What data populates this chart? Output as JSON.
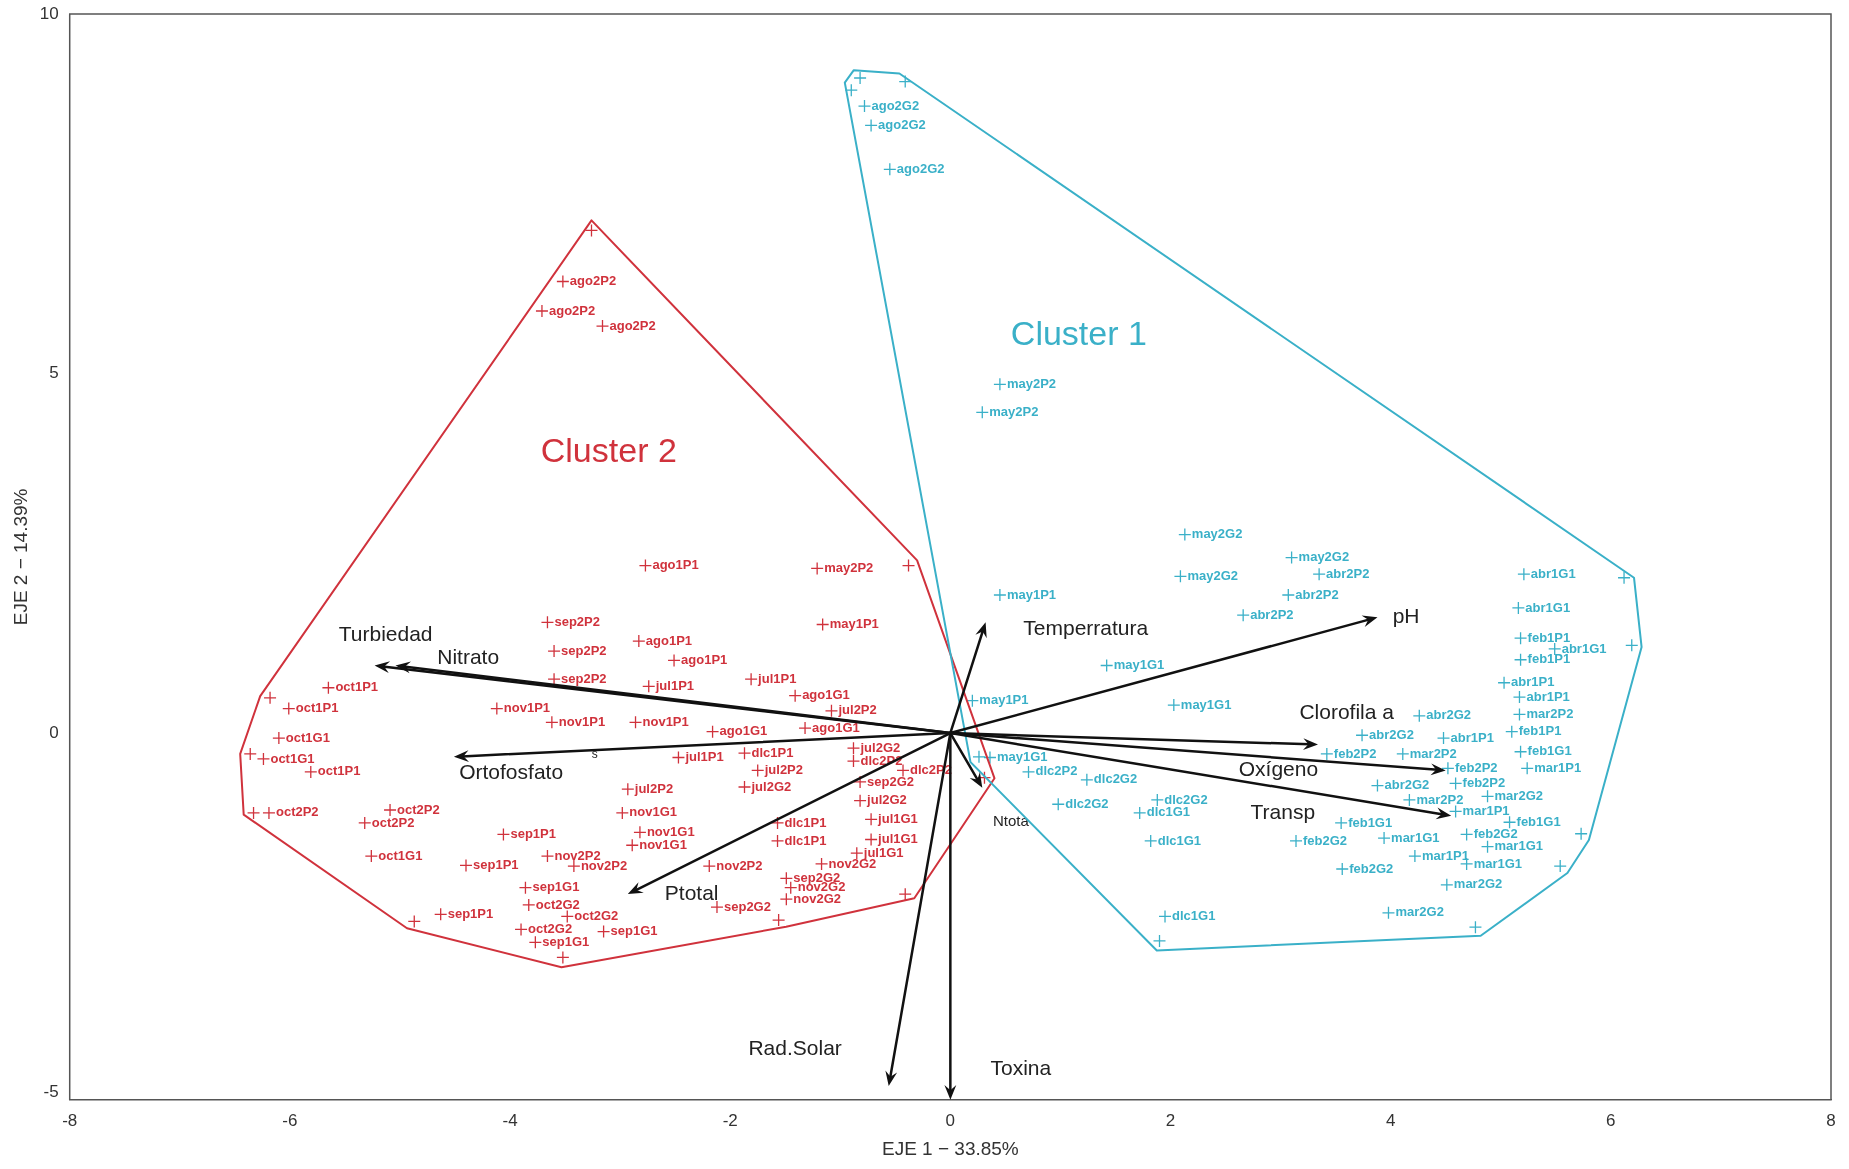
{
  "chart_data": {
    "type": "scatter",
    "xlabel": "EJE 1 − 33.85%",
    "ylabel": "EJE 2 − 14.39%",
    "xlim": [
      -8,
      8
    ],
    "xticks": [
      -8,
      -6,
      -4,
      -2,
      0,
      2,
      4,
      6,
      8
    ],
    "ylim": [
      -5.1,
      10
    ],
    "yticks": [
      -5,
      0,
      5,
      10
    ],
    "grid": false,
    "legend": false,
    "annotations": [
      "Turbiedad",
      "Nitrato",
      "Ortofosfato",
      "Ptotal",
      "Rad.Solar",
      "Toxina",
      "Ntota",
      "Temperratura",
      "pH",
      "Clorofila a",
      "Oxígeno",
      "Transp",
      "s"
    ],
    "series": [
      {
        "name": "Cluster 2",
        "marker": "cross",
        "color": "#d0323c",
        "x": [
          -3.26,
          -0.38,
          0.31,
          -0.41,
          -1.56,
          -3.52,
          -4.87,
          -6.33,
          -6.36,
          -6.18,
          -3.52,
          -3.71,
          -3.16,
          -2.77,
          -1.21,
          -1.16,
          -3.66,
          -3.6,
          -3.6,
          -2.83,
          -2.51,
          -2.74,
          -1.81,
          -1.41,
          -1.08,
          -5.65,
          -6.01,
          -6.1,
          -6.24,
          -5.81,
          -4.12,
          -3.62,
          -2.86,
          -2.16,
          -1.32,
          -2.47,
          -1.87,
          -0.88,
          -0.88,
          -0.43,
          -1.75,
          -1.87,
          -2.93,
          -0.82,
          -0.82,
          -0.72,
          -0.72,
          -0.85,
          -1.57,
          -1.57,
          -2.98,
          -2.82,
          -2.89,
          -6.19,
          -5.09,
          -5.32,
          -4.06,
          -4.4,
          -5.26,
          -3.66,
          -3.42,
          -2.19,
          -1.17,
          -1.49,
          -1.45,
          -1.49,
          -2.12,
          -3.86,
          -3.83,
          -3.48,
          -3.9,
          -3.15,
          -3.77,
          -4.63
        ],
        "values": [
          6.99,
          2.33,
          -0.62,
          -2.24,
          -2.6,
          -3.12,
          -2.62,
          -1.11,
          -0.29,
          0.49,
          6.28,
          5.87,
          5.66,
          2.33,
          2.29,
          1.51,
          1.54,
          1.14,
          0.75,
          1.28,
          1.01,
          0.65,
          0.75,
          0.52,
          0.31,
          0.63,
          0.34,
          -0.07,
          -0.36,
          -0.54,
          0.34,
          0.15,
          0.15,
          0.02,
          0.07,
          -0.34,
          -0.28,
          -0.21,
          -0.39,
          -0.52,
          -0.52,
          -0.75,
          -0.78,
          -0.68,
          -0.94,
          -1.2,
          -1.48,
          -1.67,
          -1.25,
          -1.5,
          -1.11,
          -1.38,
          -1.56,
          -1.11,
          -1.07,
          -1.25,
          -1.41,
          -1.84,
          -1.71,
          -1.71,
          -1.85,
          -1.85,
          -1.82,
          -2.02,
          -2.15,
          -2.31,
          -2.42,
          -2.15,
          -2.39,
          -2.55,
          -2.73,
          -2.76,
          -2.91,
          -2.52
        ],
        "value_labels": [
          null,
          null,
          null,
          null,
          null,
          null,
          null,
          null,
          null,
          null,
          "ago2P2",
          "ago2P2",
          "ago2P2",
          "ago1P1",
          "may2P2",
          "may1P1",
          "sep2P2",
          "sep2P2",
          "sep2P2",
          "ago1P1",
          "ago1P1",
          "jul1P1",
          "jul1P1",
          "ago1G1",
          "jul2P2",
          "oct1P1",
          "oct1P1",
          "oct1G1",
          "oct1G1",
          "oct1P1",
          "nov1P1",
          "nov1P1",
          "nov1P1",
          "ago1G1",
          "ago1G1",
          "jul1P1",
          "dlc1P1",
          "jul2G2",
          "dlc2P2",
          "dlc2P2",
          "jul2P2",
          "jul2G2",
          "jul2P2",
          "sep2G2",
          "jul2G2",
          "jul1G1",
          "jul1G1",
          "jul1G1",
          "dlc1P1",
          "dlc1P1",
          "nov1G1",
          "nov1G1",
          "nov1G1",
          "oct2P2",
          "oct2P2",
          "oct2P2",
          "sep1P1",
          "sep1P1",
          "oct1G1",
          "nov2P2",
          "nov2P2",
          "nov2P2",
          "nov2G2",
          "sep2G2",
          "nov2G2",
          "nov2G2",
          "sep2G2",
          "sep1G1",
          "oct2G2",
          "oct2G2",
          "oct2G2",
          "sep1G1",
          "sep1G1",
          "sep1P1"
        ]
      },
      {
        "name": "Cluster 1",
        "marker": "cross",
        "color": "#3ab0c8",
        "x": [
          -0.9,
          -0.82,
          -0.41,
          6.12,
          6.19,
          5.73,
          5.54,
          4.77,
          1.9,
          0.26,
          -0.78,
          -0.72,
          -0.55,
          0.45,
          0.29,
          2.13,
          3.1,
          2.09,
          3.35,
          3.07,
          2.66,
          0.45,
          1.42,
          0.2,
          2.03,
          0.36,
          0.71,
          1.24,
          0.98,
          1.88,
          1.72,
          1.82,
          1.95,
          5.21,
          5.16,
          5.18,
          5.49,
          5.18,
          5.03,
          5.17,
          5.17,
          4.26,
          4.48,
          5.1,
          3.74,
          5.18,
          3.42,
          4.11,
          4.52,
          5.24,
          4.59,
          3.88,
          4.17,
          4.88,
          4.59,
          5.08,
          3.55,
          3.14,
          3.94,
          4.69,
          4.22,
          4.88,
          4.69,
          3.56,
          4.51,
          3.98
        ],
        "values": [
          8.94,
          9.11,
          9.06,
          2.16,
          1.22,
          -1.4,
          -1.85,
          -2.7,
          -2.89,
          -0.33,
          8.72,
          8.45,
          7.84,
          4.85,
          4.46,
          2.76,
          2.44,
          2.18,
          2.21,
          1.92,
          1.64,
          1.92,
          0.94,
          0.45,
          0.39,
          -0.34,
          -0.54,
          -0.65,
          -0.99,
          -0.93,
          -1.11,
          -1.5,
          -2.55,
          2.21,
          1.74,
          1.32,
          1.17,
          1.02,
          0.7,
          0.5,
          0.26,
          0.24,
          -0.07,
          0.02,
          -0.03,
          -0.26,
          -0.29,
          -0.29,
          -0.49,
          -0.49,
          -0.7,
          -0.73,
          -0.93,
          -0.88,
          -1.09,
          -1.24,
          -1.25,
          -1.5,
          -1.46,
          -1.41,
          -1.71,
          -1.58,
          -1.82,
          -1.89,
          -2.11,
          -2.5
        ],
        "value_labels": [
          null,
          null,
          null,
          null,
          null,
          null,
          null,
          null,
          null,
          null,
          "ago2G2",
          "ago2G2",
          "ago2G2",
          "may2P2",
          "may2P2",
          "may2G2",
          "may2G2",
          "may2G2",
          "abr2P2",
          "abr2P2",
          "abr2P2",
          "may1P1",
          "may1G1",
          "may1P1",
          "may1G1",
          "may1G1",
          "dlc2P2",
          "dlc2G2",
          "dlc2G2",
          "dlc2G2",
          "dlc1G1",
          "dlc1G1",
          "dlc1G1",
          "abr1G1",
          "abr1G1",
          "feb1P1",
          "abr1G1",
          "feb1P1",
          "abr1P1",
          "abr1P1",
          "mar2P2",
          "abr2G2",
          "abr1P1",
          "feb1P1",
          "abr2G2",
          "feb1G1",
          "feb2P2",
          "mar2P2",
          "feb2P2",
          "mar1P1",
          "feb2P2",
          "abr2G2",
          "mar2P2",
          "mar2G2",
          "mar1P1",
          "feb1G1",
          "feb1G1",
          "feb2G2",
          "mar1G1",
          "feb2G2",
          "mar1P1",
          "mar1G1",
          "mar1G1",
          "feb2G2",
          "mar2G2",
          "mar2G2"
        ]
      }
    ]
  }
}
